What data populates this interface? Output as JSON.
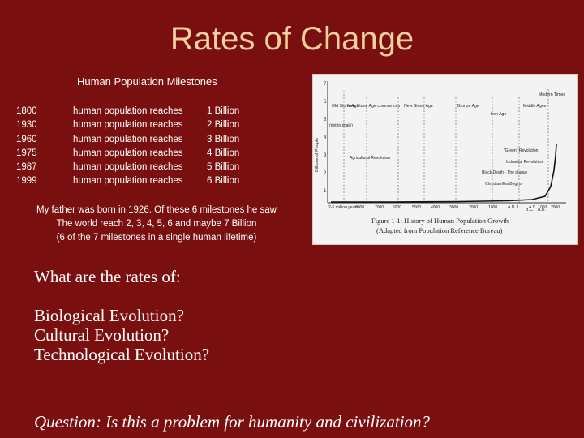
{
  "slide": {
    "title": "Rates of Change",
    "milestones_heading": "Human Population Milestones",
    "milestones": [
      {
        "year": "1800",
        "description": "human population reaches",
        "population": "1 Billion"
      },
      {
        "year": "1930",
        "description": "human population reaches",
        "population": "2 Billion"
      },
      {
        "year": "1960",
        "description": "human population reaches",
        "population": "3 Billion"
      },
      {
        "year": "1975",
        "description": "human population reaches",
        "population": "4 Billion"
      },
      {
        "year": "1987",
        "description": "human population reaches",
        "population": "5 Billion"
      },
      {
        "year": "1999",
        "description": "human population reaches",
        "population": "6 Billion"
      }
    ],
    "note_lines": [
      "My father was born in 1926. Of these 6 milestones he saw",
      "The world reach 2, 3, 4, 5, 6 and maybe 7 Billion",
      "(6 of the 7 milestones in a single human lifetime)"
    ],
    "question_lines": [
      "What are the rates of:",
      "",
      "Biological Evolution?",
      "Cultural Evolution?",
      "Technological Evolution?"
    ],
    "final_question": "Question: Is this a problem for humanity and civilization?"
  },
  "figure": {
    "caption_line1": "Figure 1-1: History of Human Population Growth",
    "caption_line2": "(Adapted from Population Reference Bureau)",
    "y_axis_title": "Billions of People",
    "y_ticks": [
      "7",
      "6",
      "5",
      "4",
      "3",
      "2",
      "1"
    ],
    "x_ticks": [
      "2-5 million years",
      "8000",
      "7000",
      "6000",
      "5000",
      "4000",
      "3000",
      "2000",
      "1000",
      "A.D. 1",
      "A.D. 1000",
      "2000"
    ],
    "eras": [
      "Old Stone Age",
      "New Stone Age commences",
      "New Stone Age",
      "Bronze Age",
      "Iron Age",
      "Middle Ages",
      "Modern Times"
    ],
    "annotations": [
      "(not to scale)",
      "Agricultural Revolution",
      "\"Green\" Revolution",
      "Industrial Revolution",
      "Black Death - The plague",
      "Christian Era Begins",
      "B.C.",
      "A.D."
    ]
  }
}
